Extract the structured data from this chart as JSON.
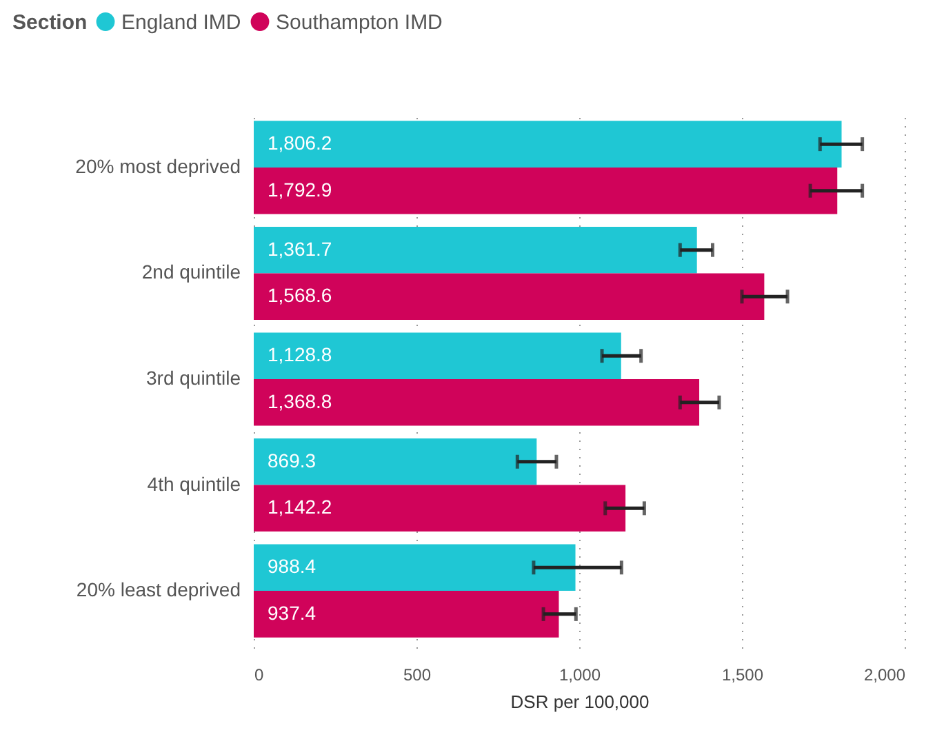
{
  "chart_data": {
    "type": "bar",
    "orientation": "horizontal",
    "xlabel": "DSR per 100,000",
    "legend_title": "Section",
    "legend": "top left",
    "grid": "x",
    "categories": [
      "20% most deprived",
      "2nd quintile",
      "3rd quintile",
      "4th quintile",
      "20% least deprived"
    ],
    "series": [
      {
        "name": "England IMD",
        "color": "#1fc7d4",
        "values": [
          1806.2,
          1361.7,
          1128.8,
          869.3,
          988.4
        ],
        "value_labels": [
          "1,806.2",
          "1,361.7",
          "1,128.8",
          "869.3",
          "988.4"
        ],
        "errors": [
          [
            1740,
            1870
          ],
          [
            1310,
            1410
          ],
          [
            1070,
            1190
          ],
          [
            810,
            930
          ],
          [
            860,
            1130
          ]
        ]
      },
      {
        "name": "Southampton IMD",
        "color": "#d0035a",
        "values": [
          1792.9,
          1568.6,
          1368.8,
          1142.2,
          937.4
        ],
        "value_labels": [
          "1,792.9",
          "1,568.6",
          "1,368.8",
          "1,142.2",
          "937.4"
        ],
        "errors": [
          [
            1710,
            1870
          ],
          [
            1500,
            1640
          ],
          [
            1310,
            1430
          ],
          [
            1080,
            1200
          ],
          [
            890,
            990
          ]
        ]
      }
    ],
    "xlim": [
      0,
      2000
    ],
    "xticks": [
      0,
      500,
      {
        "value": 1000,
        "label": "1,000"
      },
      {
        "value": 1500,
        "label": "1,500"
      },
      {
        "value": 2000,
        "label": "2,000"
      }
    ]
  }
}
